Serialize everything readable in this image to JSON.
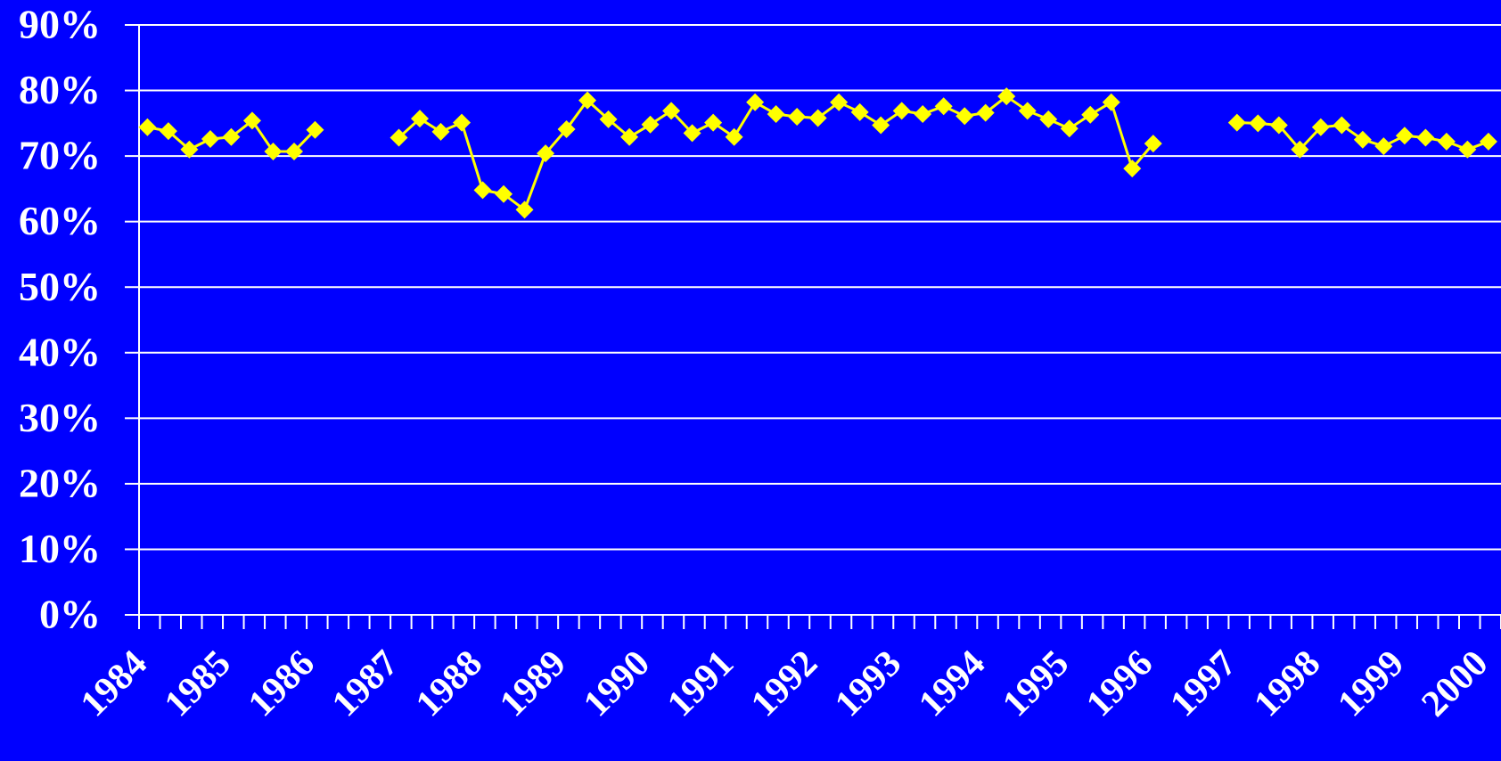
{
  "chart_data": {
    "type": "line",
    "categories": [
      "1984",
      null,
      null,
      null,
      "1985",
      null,
      null,
      null,
      "1986",
      null,
      null,
      null,
      "1987",
      null,
      null,
      null,
      "1988",
      null,
      null,
      null,
      "1989",
      null,
      null,
      null,
      "1990",
      null,
      null,
      null,
      "1991",
      null,
      null,
      null,
      "1992",
      null,
      null,
      null,
      "1993",
      null,
      null,
      null,
      "1994",
      null,
      null,
      null,
      "1995",
      null,
      null,
      null,
      "1996",
      null,
      null,
      null,
      "1997",
      null,
      null,
      null,
      "1998",
      null,
      null,
      null,
      "1999",
      null,
      null,
      null,
      "2000"
    ],
    "series": [
      {
        "color": "#ffff00",
        "values": [
          74.4,
          73.8,
          71.0,
          72.6,
          72.9,
          75.4,
          70.7,
          70.7,
          74.0,
          null,
          null,
          null,
          72.8,
          75.7,
          73.7,
          75.1,
          64.8,
          64.2,
          61.8,
          70.4,
          74.1,
          78.5,
          75.6,
          72.9,
          74.8,
          76.9,
          73.5,
          75.1,
          72.9,
          78.2,
          76.4,
          76.0,
          75.8,
          78.2,
          76.7,
          74.7,
          76.9,
          76.4,
          77.6,
          76.1,
          76.6,
          79.1,
          76.9,
          75.6,
          74.2,
          76.3,
          78.2,
          68.1,
          71.9,
          null,
          null,
          null,
          75.1,
          75.0,
          74.7,
          71.0,
          74.4,
          74.7,
          72.5,
          71.5,
          73.1,
          72.8,
          72.2,
          71.0,
          72.2
        ]
      }
    ],
    "ylim": [
      0,
      90
    ],
    "yticks": [
      {
        "value": 0,
        "label": "0%"
      },
      {
        "value": 10,
        "label": "10%"
      },
      {
        "value": 20,
        "label": "20%"
      },
      {
        "value": 30,
        "label": "30%"
      },
      {
        "value": 40,
        "label": "40%"
      },
      {
        "value": 50,
        "label": "50%"
      },
      {
        "value": 60,
        "label": "60%"
      },
      {
        "value": 70,
        "label": "70%"
      },
      {
        "value": 80,
        "label": "80%"
      },
      {
        "value": 90,
        "label": "90%"
      }
    ],
    "grid": true
  }
}
